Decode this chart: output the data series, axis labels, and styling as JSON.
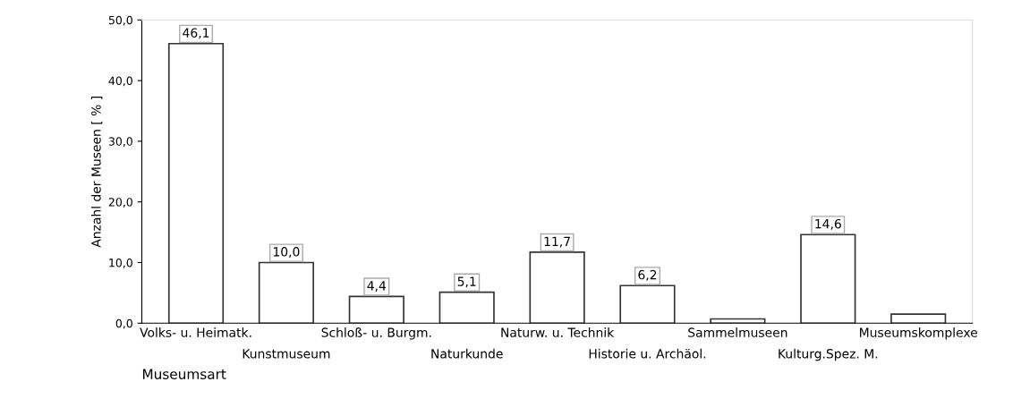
{
  "chart_data": {
    "type": "bar",
    "xlabel": "Museumsart",
    "ylabel": "Anzahl der Museen [ % ]",
    "categories": [
      "Volks- u. Heimatk.",
      "Kunstmuseum",
      "Schloß- u. Burgm.",
      "Naturkunde",
      "Naturw. u. Technik",
      "Historie u. Archäol.",
      "Sammelmuseen",
      "Kulturg.Spez. M.",
      "Museumskomplexe"
    ],
    "values": [
      46.1,
      10.0,
      4.4,
      5.1,
      11.7,
      6.2,
      0.7,
      14.6,
      1.5
    ],
    "value_labels": [
      "46,1",
      "10,0",
      "4,4",
      "5,1",
      "11,7",
      "6,2",
      null,
      "14,6",
      null
    ],
    "color": "#ffffff",
    "ylim": [
      0,
      50
    ],
    "yticks": [
      {
        "value": 0,
        "label": "0,0"
      },
      {
        "value": 10,
        "label": "10,0"
      },
      {
        "value": 20,
        "label": "20,0"
      },
      {
        "value": 30,
        "label": "30,0"
      },
      {
        "value": 40,
        "label": "40,0"
      },
      {
        "value": 50,
        "label": "50,0"
      }
    ],
    "grid": false,
    "legend": false
  }
}
